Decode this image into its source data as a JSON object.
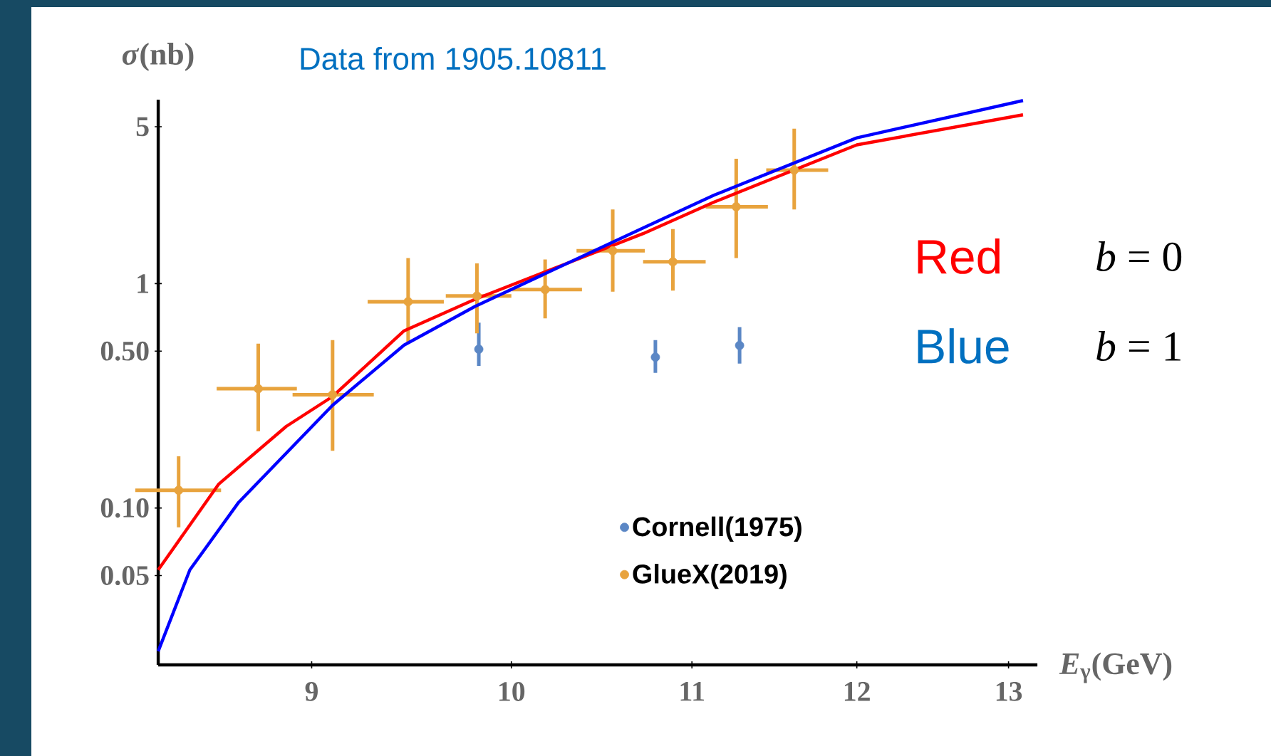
{
  "chart_data": {
    "type": "scatter",
    "xlabel": "*E*$_{γ}$(GeV)",
    "ylabel": "*σ*(nb)",
    "annotations": [
      "Data from 1905.10811",
      "Red",
      "*b* = 0",
      "Blue",
      "*b* = 1"
    ],
    "log": "xy",
    "xlim": [
      8.3,
      13.2
    ],
    "ylim": [
      0.02,
      6.6
    ],
    "xticks": [
      9,
      10,
      11,
      12,
      13
    ],
    "yticks": [
      {
        "value": 0.05,
        "label": "0.05"
      },
      {
        "value": 0.1,
        "label": "0.10"
      },
      {
        "value": 0.5,
        "label": "0.50"
      },
      1,
      5
    ],
    "legend": "bottom right",
    "series": [
      {
        "name": "Cornell(1975)",
        "marker": "circle",
        "color": "#5b87c5",
        "x": [
          9.83,
          10.79,
          11.28
        ],
        "values": [
          0.51,
          0.47,
          0.53
        ],
        "errors": [
          [
            0.43,
            0.67
          ],
          [
            0.4,
            0.56
          ],
          [
            0.44,
            0.64
          ]
        ]
      },
      {
        "name": "GlueX(2019)",
        "marker": "circle",
        "color": "#e8a33d",
        "x": [
          8.39,
          8.75,
          9.1,
          9.47,
          9.82,
          10.18,
          10.55,
          10.89,
          11.26,
          11.61
        ],
        "values": [
          0.12,
          0.34,
          0.32,
          0.83,
          0.88,
          0.94,
          1.4,
          1.25,
          2.2,
          3.2
        ],
        "errors": [
          [
            0.082,
            0.17
          ],
          [
            0.22,
            0.54
          ],
          [
            0.18,
            0.56
          ],
          [
            0.54,
            1.3
          ],
          [
            0.6,
            1.23
          ],
          [
            0.7,
            1.28
          ],
          [
            0.92,
            2.14
          ],
          [
            0.93,
            1.75
          ],
          [
            1.3,
            3.6
          ],
          [
            2.14,
            4.9
          ]
        ],
        "xerrors": [
          [
            8.2,
            8.58
          ],
          [
            8.56,
            8.93
          ],
          [
            8.91,
            9.3
          ],
          [
            9.27,
            9.65
          ],
          [
            9.66,
            10.0
          ],
          [
            10.0,
            10.38
          ],
          [
            10.35,
            10.73
          ],
          [
            10.72,
            11.08
          ],
          [
            11.08,
            11.45
          ],
          [
            11.44,
            11.82
          ]
        ]
      },
      {
        "type": "line",
        "marker": "none",
        "color": "#ff0000",
        "x": [
          8.3,
          8.57,
          8.88,
          9.1,
          9.45,
          9.81,
          10.32,
          10.72,
          11.13,
          12.0,
          13.1
        ],
        "values": [
          0.053,
          0.128,
          0.231,
          0.314,
          0.616,
          0.851,
          1.25,
          1.67,
          2.31,
          4.15,
          5.65
        ]
      },
      {
        "type": "line",
        "marker": "none",
        "color": "#0000ff",
        "x": [
          8.3,
          8.44,
          8.66,
          9.1,
          9.45,
          9.81,
          10.72,
          11.13,
          12.0,
          13.1
        ],
        "values": [
          0.023,
          0.053,
          0.106,
          0.287,
          0.532,
          0.791,
          1.77,
          2.48,
          4.46,
          6.54
        ]
      }
    ]
  }
}
